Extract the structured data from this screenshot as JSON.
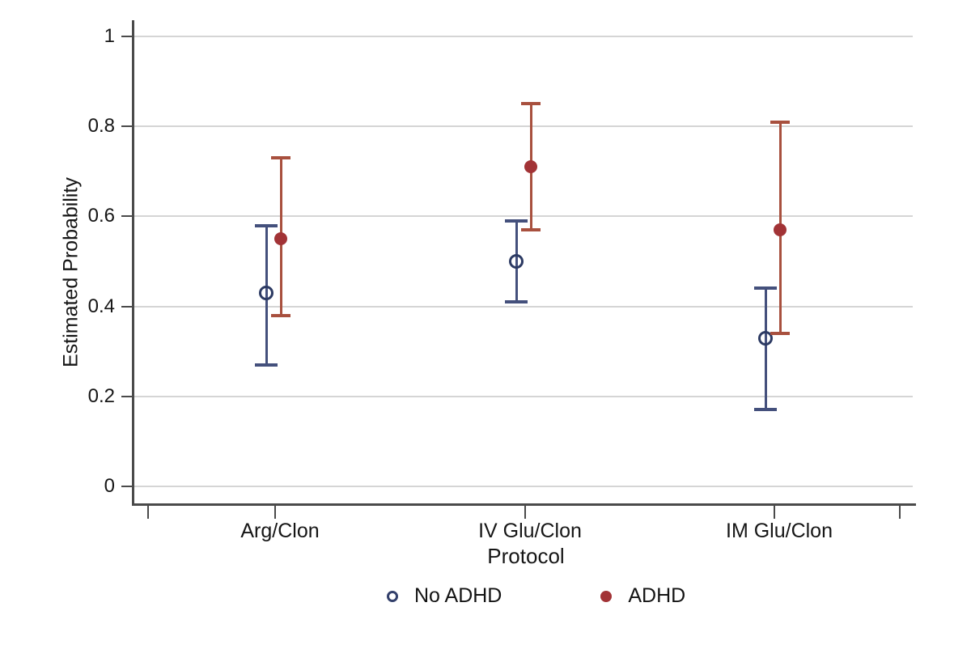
{
  "chart_data": {
    "type": "scatter",
    "title": "",
    "xlabel": "Protocol",
    "ylabel": "Estimated Probability",
    "categories": [
      "Arg/Clon",
      "IV Glu/Clon",
      "IM Glu/Clon"
    ],
    "series": [
      {
        "name": "No ADHD",
        "marker": "open-circle",
        "marker_color": "#2c3a63",
        "line_color": "#44507c",
        "values": [
          0.43,
          0.5,
          0.33
        ],
        "ci_low": [
          0.27,
          0.41,
          0.17
        ],
        "ci_high": [
          0.58,
          0.59,
          0.44
        ]
      },
      {
        "name": "ADHD",
        "marker": "filled-circle",
        "marker_color": "#a23336",
        "line_color": "#a8503e",
        "values": [
          0.55,
          0.71,
          0.57
        ],
        "ci_low": [
          0.38,
          0.57,
          0.34
        ],
        "ci_high": [
          0.73,
          0.85,
          0.81
        ]
      }
    ],
    "yticks": [
      0,
      0.2,
      0.4,
      0.6,
      0.8,
      1
    ],
    "ytick_labels": [
      "0",
      "0.2",
      "0.4",
      "0.6",
      "0.8",
      "1"
    ],
    "ylim": [
      0,
      1.04
    ],
    "grid": "horizontal-major",
    "legend_position": "bottom",
    "error_bars": "capped 95% CI"
  },
  "legend": {
    "items": [
      {
        "label": "No ADHD"
      },
      {
        "label": "ADHD"
      }
    ]
  },
  "colors": {
    "background": "#ffffff",
    "gridline": "#d5d5d5",
    "axis": "#4a4a4a",
    "text": "#161616",
    "no_adhd_blue": "#33406b",
    "adhd_red": "#a23336"
  }
}
